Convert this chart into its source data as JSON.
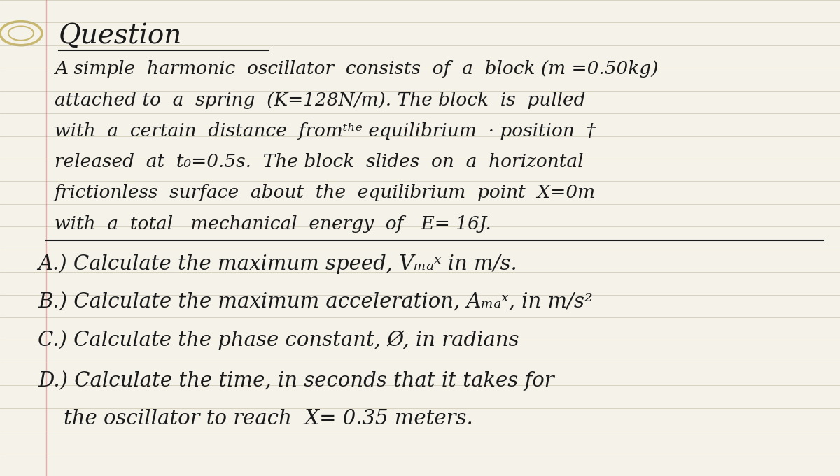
{
  "background_color": "#e8e4d8",
  "paper_color": "#f5f2ea",
  "title": "Question",
  "lines": [
    "A simple harmonic oscillator consists of a block (m=0.50kg)",
    "attached to a spring (K=128N/m). The block is pulled",
    "with a certain distance fromᵗʰᵉ equilibrium  position †",
    "released at t₀=0.5s. The block slides on a horizontal",
    "frictionless surface about the equilibrium point X=0m",
    "with a total mechanical energy of E= 16J."
  ],
  "questions": [
    "A.) Calculate the maximum speed, Vₘₐˣ in m/s.",
    "B.) Calculate the maximum acceleration, Aₘₐˣ, in m/s²",
    "C.) Calculate the phase constant, Ø, in radians",
    "D.) Calculate the time, in seconds that it takes for",
    "    the oscillator to reach X= 0.35 meters."
  ],
  "line_color": "#b0a888",
  "text_color": "#1a1a1a",
  "title_fontsize": 28,
  "body_fontsize": 19,
  "question_fontsize": 21
}
